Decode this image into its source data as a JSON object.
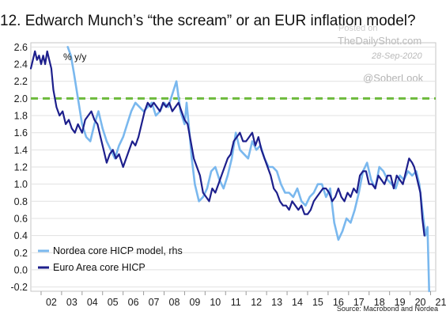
{
  "title": "12. Edwarch Munch’s “the scream” or an EUR inflation model?",
  "watermark": {
    "posted": "Posted on",
    "site": "TheDailyShot.com",
    "date": "28-Sep-2020",
    "handle": "@SoberLook"
  },
  "source": "Source: Macrobond and Nordea",
  "colors": {
    "model": "#7ab8ee",
    "core": "#1d1f8c",
    "reference": "#6dba3c",
    "grid": "#e1e1e1",
    "frame": "#c6c6c6"
  },
  "chart_data": {
    "type": "line",
    "unit_label": "% y/y",
    "xlim": [
      2001.5,
      2021.25
    ],
    "ylim": [
      -0.25,
      2.65
    ],
    "y_ticks": [
      "2.6",
      "2.4",
      "2.2",
      "2.0",
      "1.8",
      "1.6",
      "1.4",
      "1.2",
      "1.0",
      "0.8",
      "0.6",
      "0.4",
      "0.2",
      "0.0",
      "-0.2"
    ],
    "x_ticks": [
      "02",
      "03",
      "04",
      "05",
      "06",
      "07",
      "08",
      "09",
      "10",
      "11",
      "12",
      "13",
      "14",
      "15",
      "16",
      "17",
      "18",
      "19",
      "20",
      "21"
    ],
    "reference_line": 2.0,
    "legend_position": "bottom-left",
    "series": [
      {
        "name": "Nordea core HICP model, rhs",
        "x": [
          2003.3,
          2003.45,
          2003.6,
          2003.8,
          2004.0,
          2004.2,
          2004.4,
          2004.6,
          2004.8,
          2005.0,
          2005.2,
          2005.4,
          2005.6,
          2005.8,
          2006.0,
          2006.2,
          2006.4,
          2006.6,
          2006.8,
          2007.0,
          2007.2,
          2007.4,
          2007.6,
          2007.8,
          2008.0,
          2008.2,
          2008.4,
          2008.6,
          2008.8,
          2009.0,
          2009.1,
          2009.2,
          2009.35,
          2009.5,
          2009.7,
          2009.9,
          2010.1,
          2010.3,
          2010.5,
          2010.7,
          2010.9,
          2011.1,
          2011.3,
          2011.5,
          2011.7,
          2011.9,
          2012.1,
          2012.3,
          2012.5,
          2012.7,
          2012.9,
          2013.1,
          2013.3,
          2013.5,
          2013.7,
          2013.9,
          2014.1,
          2014.3,
          2014.5,
          2014.7,
          2014.9,
          2015.1,
          2015.3,
          2015.5,
          2015.7,
          2015.9,
          2016.1,
          2016.3,
          2016.5,
          2016.7,
          2016.9,
          2017.1,
          2017.3,
          2017.5,
          2017.7,
          2017.9,
          2018.1,
          2018.3,
          2018.5,
          2018.7,
          2018.9,
          2019.1,
          2019.3,
          2019.5,
          2019.7,
          2019.9,
          2020.1,
          2020.3,
          2020.45,
          2020.6,
          2020.75,
          2020.85,
          2020.93
        ],
        "y": [
          2.6,
          2.5,
          2.3,
          2.0,
          1.7,
          1.55,
          1.5,
          1.7,
          1.85,
          1.65,
          1.5,
          1.4,
          1.3,
          1.45,
          1.55,
          1.7,
          1.85,
          1.95,
          1.9,
          1.85,
          1.9,
          1.95,
          1.8,
          1.85,
          1.95,
          1.9,
          2.05,
          2.2,
          1.85,
          1.7,
          1.95,
          1.7,
          1.3,
          1.0,
          0.8,
          0.85,
          0.95,
          1.15,
          1.2,
          1.05,
          0.95,
          1.1,
          1.3,
          1.6,
          1.4,
          1.35,
          1.3,
          1.5,
          1.4,
          1.45,
          1.3,
          1.2,
          1.2,
          1.15,
          1.0,
          0.9,
          0.9,
          0.85,
          0.95,
          0.8,
          0.75,
          0.85,
          0.9,
          1.0,
          1.0,
          0.85,
          0.95,
          0.55,
          0.35,
          0.45,
          0.6,
          0.55,
          0.7,
          0.9,
          1.15,
          1.25,
          1.05,
          0.95,
          1.2,
          1.15,
          1.05,
          1.0,
          0.95,
          1.1,
          1.05,
          1.15,
          1.1,
          1.15,
          1.0,
          0.7,
          0.4,
          0.5,
          -0.25
        ]
      },
      {
        "name": "Euro Area core HICP",
        "x": [
          2001.5,
          2001.6,
          2001.7,
          2001.8,
          2001.9,
          2002.0,
          2002.1,
          2002.2,
          2002.3,
          2002.4,
          2002.5,
          2002.6,
          2002.75,
          2002.9,
          2003.05,
          2003.2,
          2003.35,
          2003.5,
          2003.65,
          2003.8,
          2004.0,
          2004.15,
          2004.3,
          2004.45,
          2004.6,
          2004.75,
          2004.9,
          2005.05,
          2005.2,
          2005.35,
          2005.5,
          2005.65,
          2005.8,
          2006.0,
          2006.15,
          2006.3,
          2006.45,
          2006.6,
          2006.75,
          2006.9,
          2007.05,
          2007.2,
          2007.35,
          2007.5,
          2007.65,
          2007.8,
          2007.95,
          2008.1,
          2008.25,
          2008.4,
          2008.55,
          2008.7,
          2008.85,
          2009.0,
          2009.15,
          2009.3,
          2009.45,
          2009.6,
          2009.75,
          2009.9,
          2010.05,
          2010.2,
          2010.35,
          2010.5,
          2010.65,
          2010.8,
          2010.95,
          2011.1,
          2011.25,
          2011.4,
          2011.55,
          2011.7,
          2011.85,
          2012.0,
          2012.15,
          2012.3,
          2012.45,
          2012.6,
          2012.75,
          2012.9,
          2013.05,
          2013.2,
          2013.35,
          2013.5,
          2013.65,
          2013.8,
          2013.95,
          2014.1,
          2014.25,
          2014.4,
          2014.55,
          2014.7,
          2014.85,
          2015.0,
          2015.15,
          2015.3,
          2015.45,
          2015.6,
          2015.75,
          2015.9,
          2016.05,
          2016.2,
          2016.35,
          2016.5,
          2016.65,
          2016.8,
          2016.95,
          2017.1,
          2017.25,
          2017.4,
          2017.55,
          2017.7,
          2017.85,
          2018.0,
          2018.15,
          2018.3,
          2018.45,
          2018.6,
          2018.75,
          2018.9,
          2019.05,
          2019.2,
          2019.35,
          2019.5,
          2019.65,
          2019.8,
          2019.95,
          2020.1,
          2020.2,
          2020.3,
          2020.4,
          2020.5,
          2020.6,
          2020.7
        ],
        "y": [
          2.35,
          2.45,
          2.55,
          2.45,
          2.5,
          2.4,
          2.5,
          2.4,
          2.55,
          2.45,
          2.35,
          2.1,
          1.9,
          1.8,
          1.85,
          1.7,
          1.75,
          1.65,
          1.6,
          1.7,
          1.6,
          1.75,
          1.8,
          1.85,
          1.75,
          1.7,
          1.55,
          1.4,
          1.25,
          1.35,
          1.4,
          1.3,
          1.35,
          1.2,
          1.3,
          1.4,
          1.5,
          1.45,
          1.55,
          1.7,
          1.85,
          1.95,
          1.9,
          1.95,
          1.9,
          1.85,
          1.95,
          1.9,
          1.95,
          1.85,
          1.9,
          1.95,
          1.85,
          1.75,
          1.7,
          1.5,
          1.3,
          1.2,
          1.1,
          0.9,
          0.85,
          0.8,
          0.95,
          0.9,
          1.0,
          1.1,
          1.2,
          1.3,
          1.35,
          1.5,
          1.55,
          1.6,
          1.5,
          1.5,
          1.55,
          1.6,
          1.45,
          1.55,
          1.4,
          1.3,
          1.2,
          1.1,
          0.95,
          0.9,
          0.8,
          0.75,
          0.75,
          0.7,
          0.8,
          0.75,
          0.7,
          0.75,
          0.65,
          0.65,
          0.7,
          0.8,
          0.85,
          0.9,
          0.95,
          0.95,
          0.9,
          0.8,
          0.85,
          0.95,
          0.85,
          0.8,
          0.9,
          0.85,
          0.95,
          0.9,
          1.1,
          1.15,
          1.15,
          1.0,
          1.0,
          0.95,
          1.1,
          1.05,
          1.0,
          1.1,
          1.1,
          0.95,
          1.1,
          1.05,
          1.0,
          1.15,
          1.3,
          1.25,
          1.2,
          1.1,
          1.0,
          0.9,
          0.6,
          0.4
        ]
      }
    ]
  }
}
